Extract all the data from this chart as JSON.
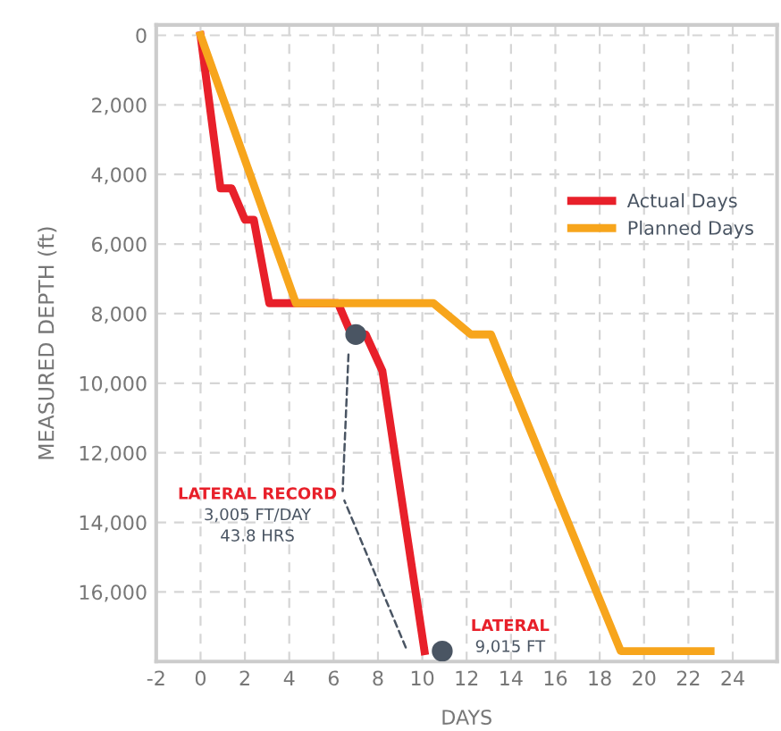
{
  "chart_data": {
    "type": "line",
    "xlabel": "DAYS",
    "ylabel": "MEASURED DEPTH (ft)",
    "xlim": [
      -2,
      26
    ],
    "ylim": [
      18000,
      -300
    ],
    "xticks": [
      -2,
      0,
      2,
      4,
      6,
      8,
      10,
      12,
      14,
      16,
      18,
      20,
      22,
      24
    ],
    "yticks": [
      0,
      {
        "value": 2000,
        "label": "2,000"
      },
      {
        "value": 4000,
        "label": "4,000"
      },
      {
        "value": 6000,
        "label": "6,000"
      },
      {
        "value": 8000,
        "label": "8,000"
      },
      {
        "value": 10000,
        "label": "10,000"
      },
      {
        "value": 12000,
        "label": "12,000"
      },
      {
        "value": 14000,
        "label": "14,000"
      },
      {
        "value": 16000,
        "label": "16,000"
      }
    ],
    "grid": true,
    "legend": "right",
    "line_style": "solid",
    "marker": "none",
    "series": [
      {
        "name": "Actual Days",
        "color": "#e8202a",
        "x": [
          0,
          0.9,
          1.4,
          2.0,
          2.4,
          3.1,
          6.2,
          6.8,
          7.45,
          8.2,
          10.1
        ],
        "values": [
          0,
          4400,
          4400,
          5300,
          5300,
          7700,
          7700,
          8600,
          8600,
          9650,
          17700
        ]
      },
      {
        "name": "Planned Days",
        "color": "#f7a51c",
        "x": [
          0,
          4.3,
          10.5,
          12.2,
          13.1,
          18.95,
          23.0
        ],
        "values": [
          0,
          7700,
          7700,
          8600,
          8600,
          17700,
          17700
        ]
      },
      {
        "type": "scatter",
        "marker": "circle",
        "color": "#4a5563",
        "x": [
          7.0,
          10.9
        ],
        "values": [
          8600,
          17700
        ]
      }
    ],
    "annotations": [
      "LATERAL RECORD\n3,005 FT/DAY\n43.8 HRS",
      "LATERAL\n9,015 FT"
    ]
  }
}
